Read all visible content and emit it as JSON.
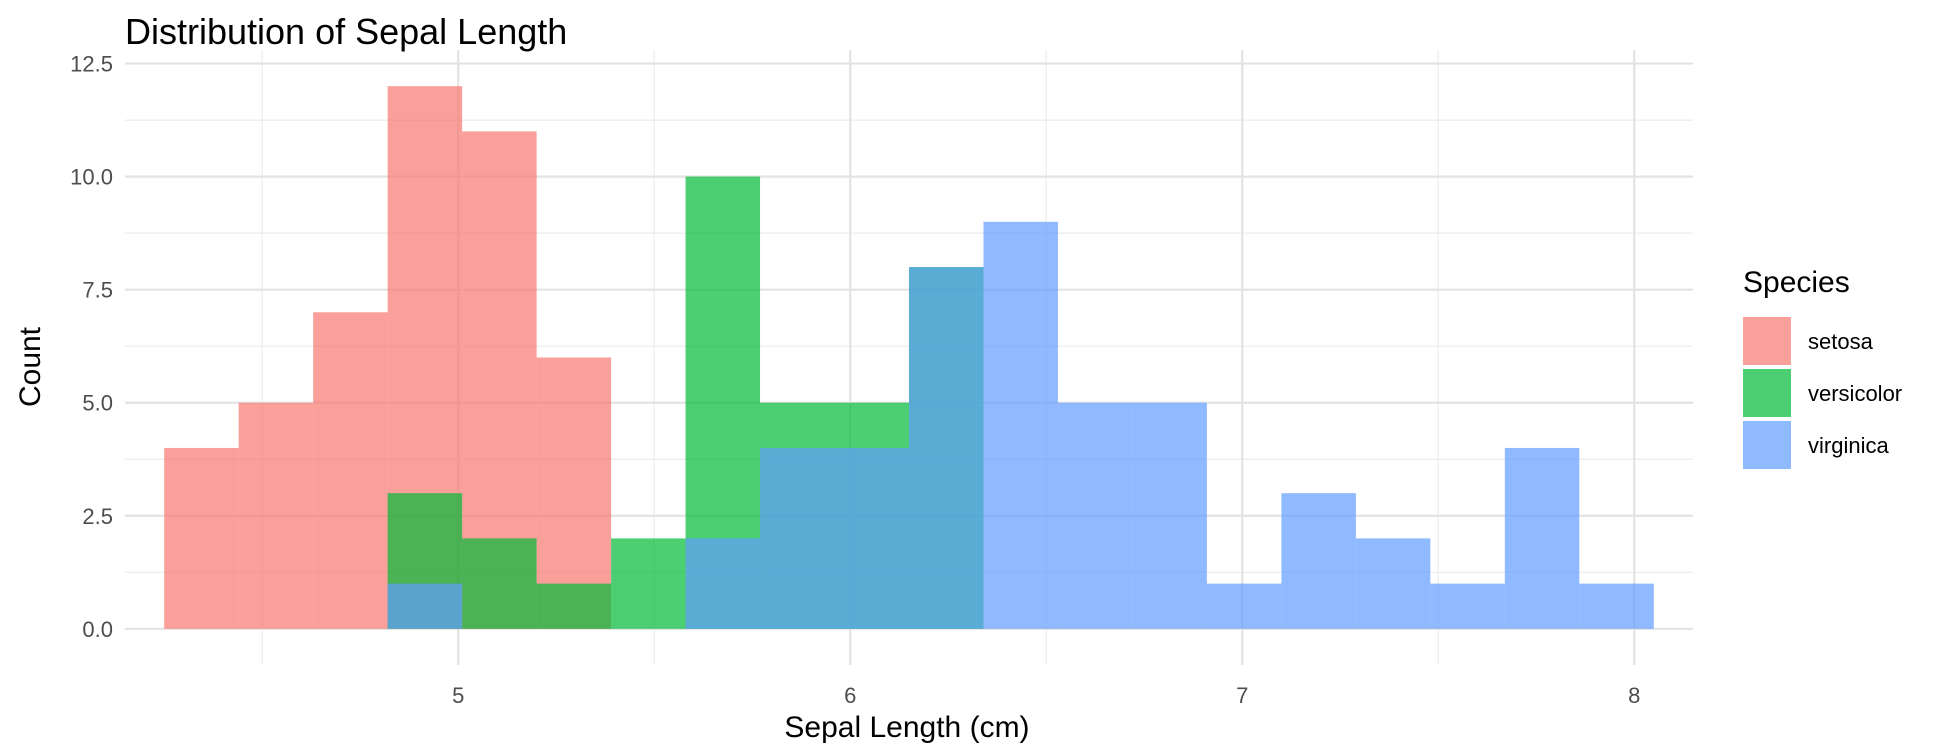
{
  "chart_data": {
    "type": "histogram",
    "title": "Distribution of Sepal Length",
    "xlabel": "Sepal Length (cm)",
    "ylabel": "Count",
    "xlim": [
      4.15,
      8.15
    ],
    "ylim": [
      -0.8,
      12.8
    ],
    "x_ticks": [
      5,
      6,
      7,
      8
    ],
    "x_tick_labels": [
      "5",
      "6",
      "7",
      "8"
    ],
    "y_ticks": [
      0,
      2.5,
      5,
      7.5,
      10,
      12.5
    ],
    "y_tick_labels": [
      "0.0",
      "2.5",
      "5.0",
      "7.5",
      "10.0",
      "12.5"
    ],
    "grid": true,
    "legend_position": "right",
    "bin_width": 0.19,
    "bin_edges": [
      4.25,
      4.44,
      4.63,
      4.82,
      5.01,
      5.2,
      5.39,
      5.58,
      5.77,
      5.96,
      6.15,
      6.34,
      6.53,
      6.72,
      6.91,
      7.1,
      7.29,
      7.48,
      7.67,
      7.86,
      8.05
    ],
    "legend": {
      "title": "Species"
    },
    "series": [
      {
        "name": "setosa",
        "color": "#F8766D",
        "values": [
          4,
          5,
          7,
          12,
          11,
          6,
          0,
          0,
          0,
          0,
          0,
          0,
          0,
          0,
          0,
          0,
          0,
          0,
          0,
          0
        ]
      },
      {
        "name": "versicolor",
        "color": "#00BA38",
        "values": [
          0,
          0,
          0,
          3,
          2,
          1,
          2,
          10,
          5,
          5,
          8,
          0,
          0,
          0,
          0,
          0,
          0,
          0,
          0,
          0
        ]
      },
      {
        "name": "virginica",
        "color": "#619CFF",
        "values": [
          0,
          0,
          0,
          1,
          0,
          0,
          0,
          2,
          4,
          4,
          8,
          9,
          5,
          5,
          1,
          3,
          2,
          1,
          4,
          1
        ]
      }
    ]
  }
}
